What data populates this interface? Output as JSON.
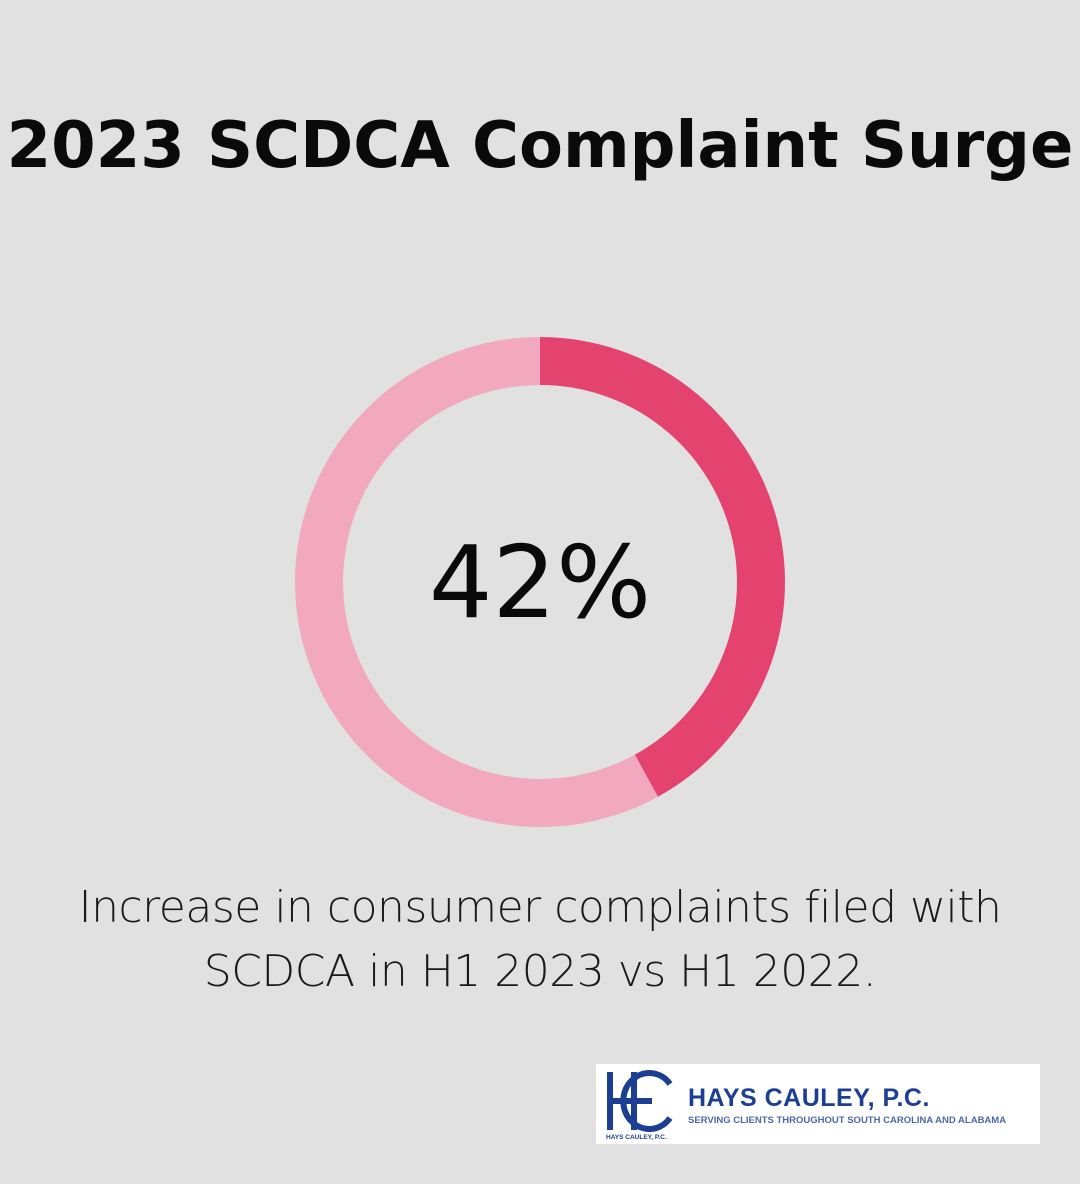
{
  "chart_data": {
    "type": "pie",
    "title": "2023 SCDCA Complaint Surge",
    "values": [
      42,
      58
    ],
    "center_label": "42%",
    "caption": "Increase in consumer complaints filed with SCDCA in H1 2023 vs H1 2022.",
    "colors": [
      "#e4436f",
      "#f2a8bf"
    ]
  },
  "logo": {
    "name": "HAYS CAULEY, P.C.",
    "tagline": "SERVING CLIENTS THROUGHOUT SOUTH CAROLINA AND ALABAMA",
    "small_name": "HAYS CAULEY, P.C.",
    "color": "#1c3f94"
  },
  "background": "#e0e1e0"
}
